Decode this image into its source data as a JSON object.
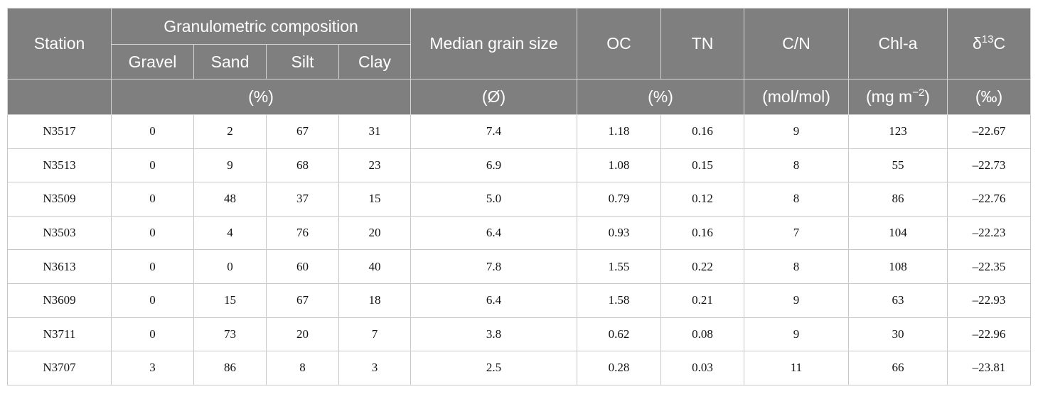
{
  "header": {
    "station": "Station",
    "granulometric": "Granulometric composition",
    "gravel": "Gravel",
    "sand": "Sand",
    "silt": "Silt",
    "clay": "Clay",
    "median": "Median grain size",
    "oc": "OC",
    "tn": "TN",
    "cn": "C/N",
    "chla": "Chl-a",
    "d13c_prefix": "δ",
    "d13c_sup": "13",
    "d13c_suffix": "C",
    "unit_pct1": "(%)",
    "unit_phi": "(Ø)",
    "unit_pct2": "(%)",
    "unit_molmol": "(mol/mol)",
    "unit_mgm_prefix": "(mg m",
    "unit_mgm_sup": "−2",
    "unit_mgm_suffix": ")",
    "unit_permil": "(‰)"
  },
  "rows": [
    [
      "N3517",
      "0",
      "2",
      "67",
      "31",
      "7.4",
      "1.18",
      "0.16",
      "9",
      "123",
      "–22.67"
    ],
    [
      "N3513",
      "0",
      "9",
      "68",
      "23",
      "6.9",
      "1.08",
      "0.15",
      "8",
      "55",
      "–22.73"
    ],
    [
      "N3509",
      "0",
      "48",
      "37",
      "15",
      "5.0",
      "0.79",
      "0.12",
      "8",
      "86",
      "–22.76"
    ],
    [
      "N3503",
      "0",
      "4",
      "76",
      "20",
      "6.4",
      "0.93",
      "0.16",
      "7",
      "104",
      "–22.23"
    ],
    [
      "N3613",
      "0",
      "0",
      "60",
      "40",
      "7.8",
      "1.55",
      "0.22",
      "8",
      "108",
      "–22.35"
    ],
    [
      "N3609",
      "0",
      "15",
      "67",
      "18",
      "6.4",
      "1.58",
      "0.21",
      "9",
      "63",
      "–22.93"
    ],
    [
      "N3711",
      "0",
      "73",
      "20",
      "7",
      "3.8",
      "0.62",
      "0.08",
      "9",
      "30",
      "–22.96"
    ],
    [
      "N3707",
      "3",
      "86",
      "8",
      "3",
      "2.5",
      "0.28",
      "0.03",
      "11",
      "66",
      "–23.81"
    ]
  ]
}
